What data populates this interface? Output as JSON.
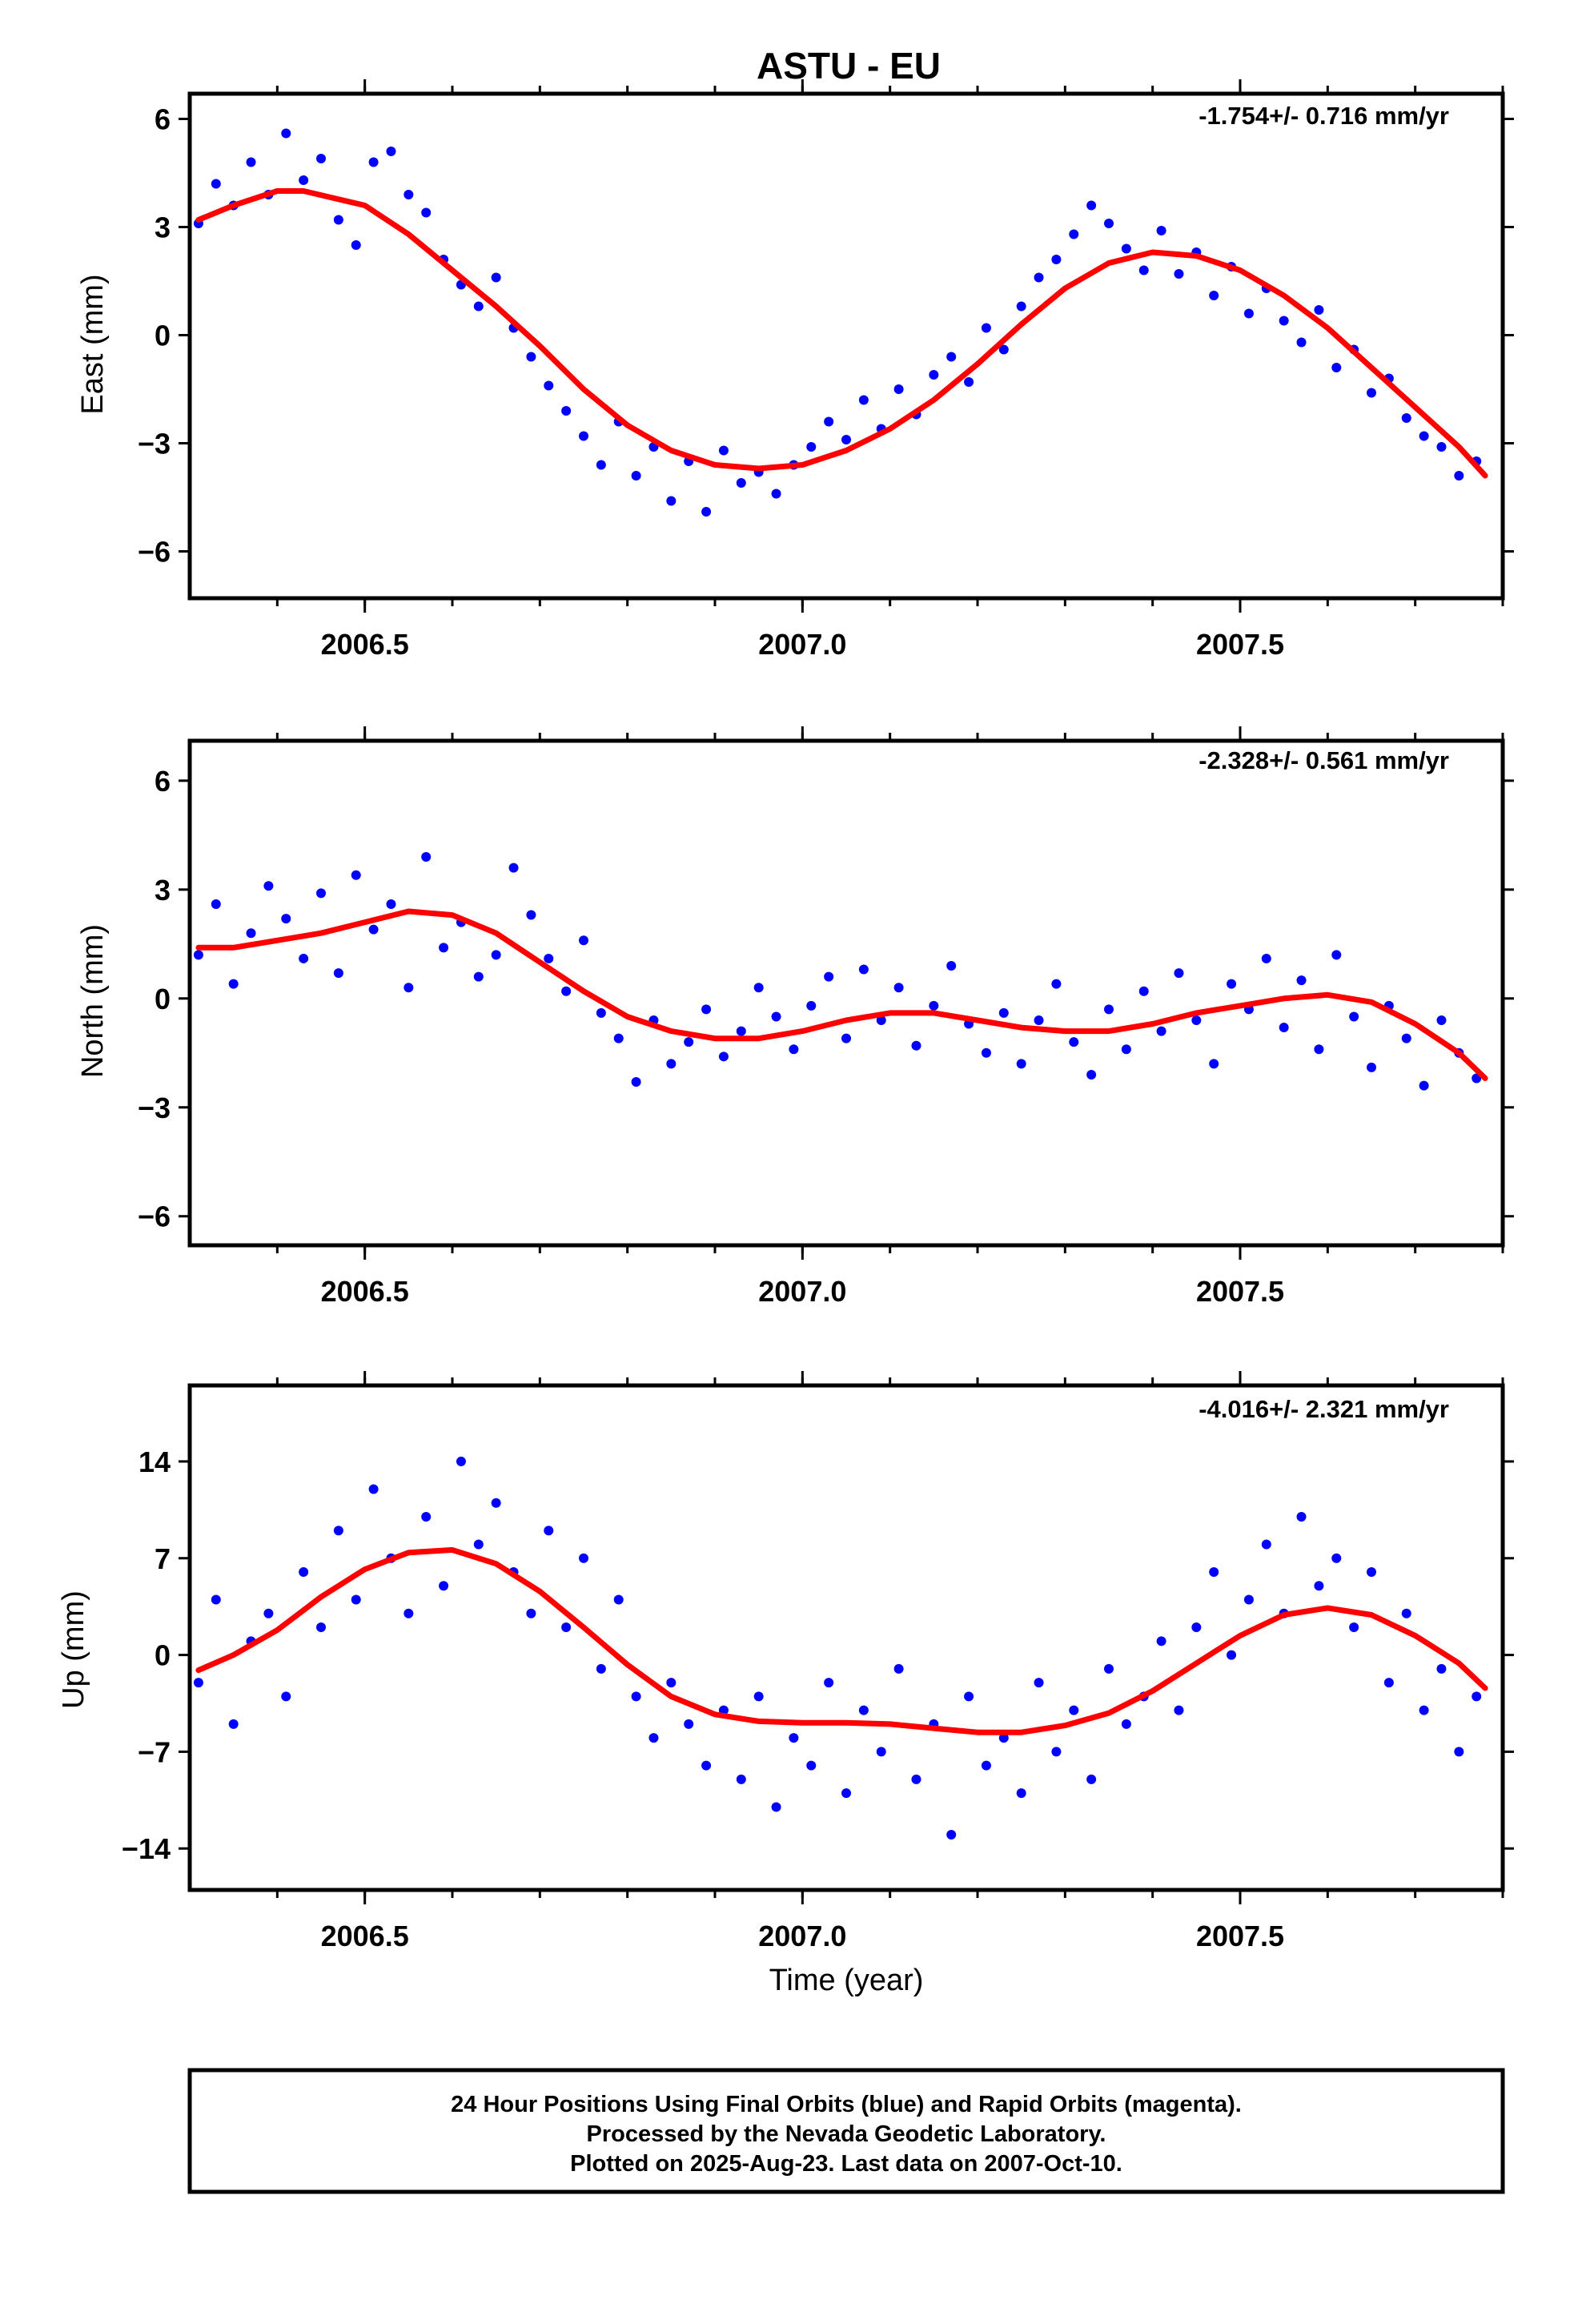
{
  "title": "ASTU - EU",
  "colors": {
    "final_orbit_points": "#0000ff",
    "model_curve": "#ff0000",
    "frame": "#000000"
  },
  "xlabel": "Time (year)",
  "footer": {
    "line1": "24 Hour Positions Using Final Orbits (blue) and Rapid Orbits (magenta).",
    "line2": "Processed by the Nevada Geodetic Laboratory.",
    "line3": "Plotted on 2025-Aug-23. Last data on 2007-Oct-10."
  },
  "chart_data": [
    {
      "type": "scatter",
      "ylabel": "East (mm)",
      "rate_label": "-1.754+/- 0.716 mm/yr",
      "xlim": [
        2006.3,
        2007.8
      ],
      "ylim": [
        -7.3,
        6.7
      ],
      "x_ticks": [
        2006.5,
        2007.0,
        2007.5
      ],
      "x_tick_labels": [
        "2006.5",
        "2007.0",
        "2007.5"
      ],
      "y_ticks": [
        -6,
        -3,
        0,
        3,
        6
      ],
      "y_tick_labels": [
        "−6",
        "−3",
        "0",
        "3",
        "6"
      ],
      "series": [
        {
          "kind": "points",
          "x": [
            2006.31,
            2006.33,
            2006.35,
            2006.37,
            2006.39,
            2006.41,
            2006.43,
            2006.45,
            2006.47,
            2006.49,
            2006.51,
            2006.53,
            2006.55,
            2006.57,
            2006.59,
            2006.61,
            2006.63,
            2006.65,
            2006.67,
            2006.69,
            2006.71,
            2006.73,
            2006.75,
            2006.77,
            2006.79,
            2006.81,
            2006.83,
            2006.85,
            2006.87,
            2006.89,
            2006.91,
            2006.93,
            2006.95,
            2006.97,
            2006.99,
            2007.01,
            2007.03,
            2007.05,
            2007.07,
            2007.09,
            2007.11,
            2007.13,
            2007.15,
            2007.17,
            2007.19,
            2007.21,
            2007.23,
            2007.25,
            2007.27,
            2007.29,
            2007.31,
            2007.33,
            2007.35,
            2007.37,
            2007.39,
            2007.41,
            2007.43,
            2007.45,
            2007.47,
            2007.49,
            2007.51,
            2007.53,
            2007.55,
            2007.57,
            2007.59,
            2007.61,
            2007.63,
            2007.65,
            2007.67,
            2007.69,
            2007.71,
            2007.73,
            2007.75,
            2007.77
          ],
          "y": [
            3.1,
            4.2,
            3.6,
            4.8,
            3.9,
            5.6,
            4.3,
            4.9,
            3.2,
            2.5,
            4.8,
            5.1,
            3.9,
            3.4,
            2.1,
            1.4,
            0.8,
            1.6,
            0.2,
            -0.6,
            -1.4,
            -2.1,
            -2.8,
            -3.6,
            -2.4,
            -3.9,
            -3.1,
            -4.6,
            -3.5,
            -4.9,
            -3.2,
            -4.1,
            -3.8,
            -4.4,
            -3.6,
            -3.1,
            -2.4,
            -2.9,
            -1.8,
            -2.6,
            -1.5,
            -2.2,
            -1.1,
            -0.6,
            -1.3,
            0.2,
            -0.4,
            0.8,
            1.6,
            2.1,
            2.8,
            3.6,
            3.1,
            2.4,
            1.8,
            2.9,
            1.7,
            2.3,
            1.1,
            1.9,
            0.6,
            1.3,
            0.4,
            -0.2,
            0.7,
            -0.9,
            -0.4,
            -1.6,
            -1.2,
            -2.3,
            -2.8,
            -3.1,
            -3.9,
            -3.5
          ]
        },
        {
          "kind": "line",
          "x": [
            2006.31,
            2006.35,
            2006.4,
            2006.43,
            2006.5,
            2006.55,
            2006.6,
            2006.65,
            2006.7,
            2006.75,
            2006.8,
            2006.85,
            2006.9,
            2006.95,
            2007.0,
            2007.05,
            2007.1,
            2007.15,
            2007.2,
            2007.25,
            2007.3,
            2007.35,
            2007.4,
            2007.45,
            2007.5,
            2007.55,
            2007.6,
            2007.65,
            2007.7,
            2007.75,
            2007.78
          ],
          "y": [
            3.2,
            3.6,
            4.0,
            4.0,
            3.6,
            2.8,
            1.8,
            0.8,
            -0.3,
            -1.5,
            -2.5,
            -3.2,
            -3.6,
            -3.7,
            -3.6,
            -3.2,
            -2.6,
            -1.8,
            -0.8,
            0.3,
            1.3,
            2.0,
            2.3,
            2.2,
            1.8,
            1.1,
            0.2,
            -0.9,
            -2.0,
            -3.1,
            -3.9
          ]
        }
      ]
    },
    {
      "type": "scatter",
      "ylabel": "North (mm)",
      "rate_label": "-2.328+/- 0.561 mm/yr",
      "xlim": [
        2006.3,
        2007.8
      ],
      "ylim": [
        -6.8,
        7.1
      ],
      "x_ticks": [
        2006.5,
        2007.0,
        2007.5
      ],
      "x_tick_labels": [
        "2006.5",
        "2007.0",
        "2007.5"
      ],
      "y_ticks": [
        -6,
        -3,
        0,
        3,
        6
      ],
      "y_tick_labels": [
        "−6",
        "−3",
        "0",
        "3",
        "6"
      ],
      "series": [
        {
          "kind": "points",
          "x": [
            2006.31,
            2006.33,
            2006.35,
            2006.37,
            2006.39,
            2006.41,
            2006.43,
            2006.45,
            2006.47,
            2006.49,
            2006.51,
            2006.53,
            2006.55,
            2006.57,
            2006.59,
            2006.61,
            2006.63,
            2006.65,
            2006.67,
            2006.69,
            2006.71,
            2006.73,
            2006.75,
            2006.77,
            2006.79,
            2006.81,
            2006.83,
            2006.85,
            2006.87,
            2006.89,
            2006.91,
            2006.93,
            2006.95,
            2006.97,
            2006.99,
            2007.01,
            2007.03,
            2007.05,
            2007.07,
            2007.09,
            2007.11,
            2007.13,
            2007.15,
            2007.17,
            2007.19,
            2007.21,
            2007.23,
            2007.25,
            2007.27,
            2007.29,
            2007.31,
            2007.33,
            2007.35,
            2007.37,
            2007.39,
            2007.41,
            2007.43,
            2007.45,
            2007.47,
            2007.49,
            2007.51,
            2007.53,
            2007.55,
            2007.57,
            2007.59,
            2007.61,
            2007.63,
            2007.65,
            2007.67,
            2007.69,
            2007.71,
            2007.73,
            2007.75,
            2007.77
          ],
          "y": [
            1.2,
            2.6,
            0.4,
            1.8,
            3.1,
            2.2,
            1.1,
            2.9,
            0.7,
            3.4,
            1.9,
            2.6,
            0.3,
            3.9,
            1.4,
            2.1,
            0.6,
            1.2,
            3.6,
            2.3,
            1.1,
            0.2,
            1.6,
            -0.4,
            -1.1,
            -2.3,
            -0.6,
            -1.8,
            -1.2,
            -0.3,
            -1.6,
            -0.9,
            0.3,
            -0.5,
            -1.4,
            -0.2,
            0.6,
            -1.1,
            0.8,
            -0.6,
            0.3,
            -1.3,
            -0.2,
            0.9,
            -0.7,
            -1.5,
            -0.4,
            -1.8,
            -0.6,
            0.4,
            -1.2,
            -2.1,
            -0.3,
            -1.4,
            0.2,
            -0.9,
            0.7,
            -0.6,
            -1.8,
            0.4,
            -0.3,
            1.1,
            -0.8,
            0.5,
            -1.4,
            1.2,
            -0.5,
            -1.9,
            -0.2,
            -1.1,
            -2.4,
            -0.6,
            -1.5,
            -2.2
          ]
        },
        {
          "kind": "line",
          "x": [
            2006.31,
            2006.35,
            2006.4,
            2006.45,
            2006.5,
            2006.55,
            2006.6,
            2006.65,
            2006.7,
            2006.75,
            2006.8,
            2006.85,
            2006.9,
            2006.95,
            2007.0,
            2007.05,
            2007.1,
            2007.15,
            2007.2,
            2007.25,
            2007.3,
            2007.35,
            2007.4,
            2007.45,
            2007.5,
            2007.55,
            2007.6,
            2007.65,
            2007.7,
            2007.75,
            2007.78
          ],
          "y": [
            1.4,
            1.4,
            1.6,
            1.8,
            2.1,
            2.4,
            2.3,
            1.8,
            1.0,
            0.2,
            -0.5,
            -0.9,
            -1.1,
            -1.1,
            -0.9,
            -0.6,
            -0.4,
            -0.4,
            -0.6,
            -0.8,
            -0.9,
            -0.9,
            -0.7,
            -0.4,
            -0.2,
            0.0,
            0.1,
            -0.1,
            -0.7,
            -1.5,
            -2.2
          ]
        }
      ]
    },
    {
      "type": "scatter",
      "ylabel": "Up (mm)",
      "rate_label": "-4.016+/- 2.321 mm/yr",
      "xlim": [
        2006.3,
        2007.8
      ],
      "ylim": [
        -17,
        19.5
      ],
      "x_ticks": [
        2006.5,
        2007.0,
        2007.5
      ],
      "x_tick_labels": [
        "2006.5",
        "2007.0",
        "2007.5"
      ],
      "y_ticks": [
        -14,
        -7,
        0,
        7,
        14
      ],
      "y_tick_labels": [
        "−14",
        "−7",
        "0",
        "7",
        "14"
      ],
      "series": [
        {
          "kind": "points",
          "x": [
            2006.31,
            2006.33,
            2006.35,
            2006.37,
            2006.39,
            2006.41,
            2006.43,
            2006.45,
            2006.47,
            2006.49,
            2006.51,
            2006.53,
            2006.55,
            2006.57,
            2006.59,
            2006.61,
            2006.63,
            2006.65,
            2006.67,
            2006.69,
            2006.71,
            2006.73,
            2006.75,
            2006.77,
            2006.79,
            2006.81,
            2006.83,
            2006.85,
            2006.87,
            2006.89,
            2006.91,
            2006.93,
            2006.95,
            2006.97,
            2006.99,
            2007.01,
            2007.03,
            2007.05,
            2007.07,
            2007.09,
            2007.11,
            2007.13,
            2007.15,
            2007.17,
            2007.19,
            2007.21,
            2007.23,
            2007.25,
            2007.27,
            2007.29,
            2007.31,
            2007.33,
            2007.35,
            2007.37,
            2007.39,
            2007.41,
            2007.43,
            2007.45,
            2007.47,
            2007.49,
            2007.51,
            2007.53,
            2007.55,
            2007.57,
            2007.59,
            2007.61,
            2007.63,
            2007.65,
            2007.67,
            2007.69,
            2007.71,
            2007.73,
            2007.75,
            2007.77
          ],
          "y": [
            -2,
            4,
            -5,
            1,
            3,
            -3,
            6,
            2,
            9,
            4,
            12,
            7,
            3,
            10,
            5,
            14,
            8,
            11,
            6,
            3,
            9,
            2,
            7,
            -1,
            4,
            -3,
            -6,
            -2,
            -5,
            -8,
            -4,
            -9,
            -3,
            -11,
            -6,
            -8,
            -2,
            -10,
            -4,
            -7,
            -1,
            -9,
            -5,
            -13,
            -3,
            -8,
            -6,
            -10,
            -2,
            -7,
            -4,
            -9,
            -1,
            -5,
            -3,
            1,
            -4,
            2,
            6,
            0,
            4,
            8,
            3,
            10,
            5,
            7,
            2,
            6,
            -2,
            3,
            -4,
            -1,
            -7,
            -3
          ]
        },
        {
          "kind": "line",
          "x": [
            2006.31,
            2006.35,
            2006.4,
            2006.45,
            2006.5,
            2006.55,
            2006.6,
            2006.65,
            2006.7,
            2006.75,
            2006.8,
            2006.85,
            2006.9,
            2006.95,
            2007.0,
            2007.05,
            2007.1,
            2007.15,
            2007.2,
            2007.25,
            2007.3,
            2007.35,
            2007.4,
            2007.45,
            2007.5,
            2007.55,
            2007.6,
            2007.65,
            2007.7,
            2007.75,
            2007.78
          ],
          "y": [
            -1.1,
            0.0,
            1.8,
            4.2,
            6.2,
            7.4,
            7.6,
            6.6,
            4.6,
            2.0,
            -0.7,
            -3.0,
            -4.3,
            -4.8,
            -4.9,
            -4.9,
            -5.0,
            -5.3,
            -5.6,
            -5.6,
            -5.1,
            -4.2,
            -2.6,
            -0.6,
            1.4,
            2.9,
            3.4,
            2.9,
            1.4,
            -0.6,
            -2.4
          ]
        }
      ]
    }
  ]
}
